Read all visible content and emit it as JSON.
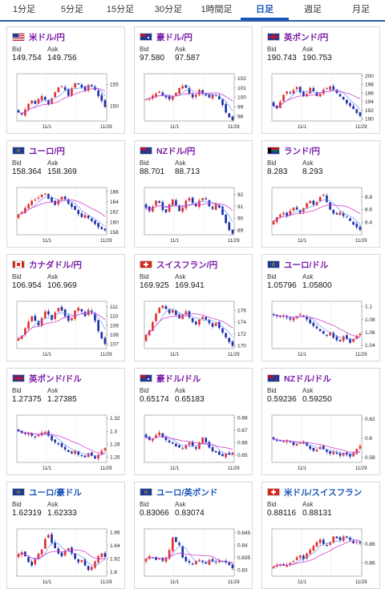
{
  "tabs": [
    {
      "label": "1分足",
      "active": false
    },
    {
      "label": "5分足",
      "active": false
    },
    {
      "label": "15分足",
      "active": false
    },
    {
      "label": "30分足",
      "active": false
    },
    {
      "label": "1時間足",
      "active": false
    },
    {
      "label": "日足",
      "active": true
    },
    {
      "label": "週足",
      "active": false
    },
    {
      "label": "月足",
      "active": false
    }
  ],
  "labels": {
    "bid": "Bid",
    "ask": "Ask"
  },
  "colors": {
    "up": "#e53030",
    "down": "#1c2fa8",
    "ma": "#d040d0",
    "ma2": "#7090ff",
    "purple_name": "#7a1aa8",
    "blue_name": "#1a56b8",
    "tab_active": "#1a56b8"
  },
  "pairs": [
    {
      "name": "米ドル/円",
      "flag": "us-flag-icon",
      "name_color": "purple",
      "bid": "149.754",
      "ask": "149.756",
      "chart_data": {
        "type": "candlestick",
        "x_labels": [
          "11/1",
          "11/29"
        ],
        "y_ticks": [
          150,
          155
        ],
        "ylim": [
          146.5,
          157.5
        ],
        "close": [
          148.5,
          148.0,
          149.2,
          150.5,
          151.3,
          150.5,
          151.6,
          152.3,
          151.5,
          150.4,
          151.8,
          153.2,
          154.3,
          154.6,
          153.7,
          152.4,
          154.2,
          155.3,
          155.0,
          154.3,
          153.6,
          154.9,
          154.6,
          153.7,
          152.3,
          151.2,
          149.8
        ]
      }
    },
    {
      "name": "豪ドル/円",
      "flag": "au-flag-icon",
      "name_color": "purple",
      "bid": "97.580",
      "ask": "97.587",
      "chart_data": {
        "type": "candlestick",
        "x_labels": [
          "11/1",
          "11/29"
        ],
        "y_ticks": [
          98,
          99,
          100,
          101,
          102
        ],
        "ylim": [
          97.5,
          102.5
        ],
        "close": [
          99.8,
          99.9,
          100.2,
          100.4,
          100.6,
          100.2,
          100.0,
          99.8,
          100.1,
          100.5,
          101.0,
          101.2,
          101.0,
          100.4,
          100.0,
          100.3,
          100.8,
          100.4,
          100.2,
          100.0,
          100.3,
          100.2,
          99.8,
          99.2,
          98.4,
          97.9,
          97.6
        ]
      }
    },
    {
      "name": "英ポンド/円",
      "flag": "uk-flag-icon",
      "name_color": "purple",
      "bid": "190.743",
      "ask": "190.753",
      "chart_data": {
        "type": "candlestick",
        "x_labels": [
          "11/1",
          "11/29"
        ],
        "y_ticks": [
          190,
          192,
          194,
          196,
          198,
          200
        ],
        "ylim": [
          189.5,
          200.5
        ],
        "close": [
          193.0,
          192.4,
          194.0,
          195.6,
          196.4,
          196.0,
          196.7,
          197.4,
          196.2,
          195.3,
          195.8,
          197.2,
          196.4,
          195.3,
          195.8,
          196.8,
          197.0,
          197.6,
          196.8,
          196.0,
          195.2,
          194.5,
          193.6,
          193.0,
          192.3,
          191.4,
          190.7
        ]
      }
    },
    {
      "name": "ユーロ/円",
      "flag": "eu-flag-icon",
      "name_color": "purple",
      "bid": "158.364",
      "ask": "158.369",
      "chart_data": {
        "type": "candlestick",
        "x_labels": [
          "11/1",
          "11/29"
        ],
        "y_ticks": [
          158,
          160,
          162,
          164,
          166
        ],
        "ylim": [
          157.5,
          166.8
        ],
        "close": [
          161.5,
          162.0,
          162.8,
          163.5,
          164.2,
          164.4,
          164.8,
          165.4,
          165.6,
          164.6,
          164.0,
          163.4,
          164.3,
          165.0,
          164.5,
          163.6,
          163.0,
          162.4,
          161.6,
          161.0,
          161.4,
          160.8,
          160.2,
          159.6,
          159.0,
          158.6,
          158.4
        ]
      }
    },
    {
      "name": "NZドル/円",
      "flag": "nz-flag-icon",
      "name_color": "purple",
      "bid": "88.701",
      "ask": "88.713",
      "chart_data": {
        "type": "candlestick",
        "x_labels": [
          "11/1",
          "11/29"
        ],
        "y_ticks": [
          89,
          90,
          91,
          92
        ],
        "ylim": [
          88.6,
          92.6
        ],
        "close": [
          90.9,
          90.6,
          91.0,
          91.5,
          91.3,
          90.7,
          90.5,
          91.2,
          91.6,
          91.1,
          90.6,
          90.9,
          91.5,
          91.7,
          91.3,
          91.0,
          91.5,
          91.7,
          91.6,
          91.0,
          90.8,
          91.2,
          90.9,
          90.3,
          89.6,
          89.0,
          88.7
        ]
      }
    },
    {
      "name": "ランド/円",
      "flag": "za-flag-icon",
      "name_color": "purple",
      "bid": "8.283",
      "ask": "8.293",
      "chart_data": {
        "type": "candlestick",
        "x_labels": [
          "11/1",
          "11/29"
        ],
        "y_ticks": [
          8.4,
          8.6,
          8.8
        ],
        "ylim": [
          8.2,
          8.95
        ],
        "close": [
          8.42,
          8.48,
          8.52,
          8.55,
          8.5,
          8.58,
          8.63,
          8.6,
          8.55,
          8.62,
          8.7,
          8.74,
          8.68,
          8.72,
          8.8,
          8.84,
          8.72,
          8.6,
          8.54,
          8.52,
          8.56,
          8.5,
          8.48,
          8.42,
          8.36,
          8.32,
          8.28
        ]
      }
    },
    {
      "name": "カナダドル/円",
      "flag": "ca-flag-icon",
      "name_color": "purple",
      "bid": "106.954",
      "ask": "106.969",
      "chart_data": {
        "type": "candlestick",
        "x_labels": [
          "11/1",
          "11/29"
        ],
        "y_ticks": [
          107,
          108,
          109,
          110,
          111
        ],
        "ylim": [
          106.5,
          111.6
        ],
        "close": [
          107.6,
          107.9,
          108.7,
          109.4,
          110.0,
          109.5,
          109.0,
          109.8,
          110.5,
          110.2,
          109.6,
          110.4,
          110.9,
          110.6,
          110.0,
          109.5,
          109.8,
          110.6,
          110.9,
          110.5,
          110.0,
          110.7,
          110.4,
          109.5,
          108.4,
          107.6,
          107.0
        ]
      }
    },
    {
      "name": "スイスフラン/円",
      "flag": "ch-flag-icon",
      "name_color": "purple",
      "bid": "169.925",
      "ask": "169.941",
      "chart_data": {
        "type": "candlestick",
        "x_labels": [
          "11/1",
          "11/29"
        ],
        "y_ticks": [
          170,
          172,
          174,
          176
        ],
        "ylim": [
          169.5,
          177.5
        ],
        "close": [
          171.8,
          172.6,
          174.0,
          175.4,
          176.4,
          176.8,
          176.2,
          175.5,
          176.0,
          175.2,
          174.6,
          175.3,
          175.8,
          174.8,
          174.0,
          173.6,
          174.4,
          174.9,
          174.4,
          173.8,
          173.2,
          173.8,
          173.0,
          172.2,
          171.4,
          170.6,
          170.0
        ]
      }
    },
    {
      "name": "ユーロ/ドル",
      "flag": "eu-flag-icon",
      "name_color": "purple",
      "bid": "1.05796",
      "ask": "1.05800",
      "chart_data": {
        "type": "candlestick",
        "x_labels": [
          "11/1",
          "11/29"
        ],
        "y_ticks": [
          1.04,
          1.06,
          1.08,
          1.1
        ],
        "ylim": [
          1.035,
          1.108
        ],
        "close": [
          1.087,
          1.085,
          1.084,
          1.086,
          1.083,
          1.08,
          1.082,
          1.085,
          1.088,
          1.086,
          1.08,
          1.074,
          1.07,
          1.066,
          1.062,
          1.058,
          1.055,
          1.06,
          1.052,
          1.048,
          1.046,
          1.054,
          1.05,
          1.044,
          1.05,
          1.055,
          1.058
        ]
      }
    },
    {
      "name": "英ポンド/ドル",
      "flag": "uk-flag-icon",
      "name_color": "purple",
      "bid": "1.27375",
      "ask": "1.27385",
      "chart_data": {
        "type": "candlestick",
        "x_labels": [
          "11/1",
          "11/29"
        ],
        "y_ticks": [
          1.26,
          1.28,
          1.3,
          1.32
        ],
        "ylim": [
          1.252,
          1.325
        ],
        "close": [
          1.3,
          1.297,
          1.296,
          1.298,
          1.293,
          1.291,
          1.294,
          1.298,
          1.299,
          1.293,
          1.286,
          1.283,
          1.28,
          1.276,
          1.272,
          1.268,
          1.266,
          1.27,
          1.264,
          1.262,
          1.26,
          1.266,
          1.262,
          1.258,
          1.264,
          1.27,
          1.274
        ]
      }
    },
    {
      "name": "豪ドル/ドル",
      "flag": "au-flag-icon",
      "name_color": "purple",
      "bid": "0.65174",
      "ask": "0.65183",
      "chart_data": {
        "type": "candlestick",
        "x_labels": [
          "11/1",
          "11/29"
        ],
        "y_ticks": [
          0.65,
          0.66,
          0.67,
          0.68
        ],
        "ylim": [
          0.644,
          0.682
        ],
        "close": [
          0.664,
          0.662,
          0.663,
          0.666,
          0.668,
          0.664,
          0.662,
          0.66,
          0.659,
          0.657,
          0.656,
          0.655,
          0.658,
          0.66,
          0.657,
          0.655,
          0.66,
          0.664,
          0.66,
          0.656,
          0.653,
          0.652,
          0.65,
          0.649,
          0.651,
          0.65,
          0.652
        ]
      }
    },
    {
      "name": "NZドル/ドル",
      "flag": "nz-flag-icon",
      "name_color": "purple",
      "bid": "0.59236",
      "ask": "0.59250",
      "chart_data": {
        "type": "candlestick",
        "x_labels": [
          "11/1",
          "11/29"
        ],
        "y_ticks": [
          0.58,
          0.6,
          0.62
        ],
        "ylim": [
          0.575,
          0.624
        ],
        "close": [
          0.599,
          0.598,
          0.597,
          0.596,
          0.598,
          0.596,
          0.593,
          0.594,
          0.595,
          0.596,
          0.592,
          0.589,
          0.587,
          0.588,
          0.591,
          0.589,
          0.586,
          0.584,
          0.586,
          0.584,
          0.582,
          0.585,
          0.583,
          0.581,
          0.585,
          0.589,
          0.592
        ]
      }
    },
    {
      "name": "ユーロ/豪ドル",
      "flag": "eu-flag-icon",
      "name_color": "blue",
      "bid": "1.62319",
      "ask": "1.62333",
      "chart_data": {
        "type": "candlestick",
        "x_labels": [
          "11/1",
          "11/29"
        ],
        "y_ticks": [
          1.6,
          1.62,
          1.64,
          1.66
        ],
        "ylim": [
          1.594,
          1.665
        ],
        "close": [
          1.627,
          1.63,
          1.624,
          1.615,
          1.61,
          1.62,
          1.628,
          1.634,
          1.65,
          1.656,
          1.644,
          1.636,
          1.628,
          1.624,
          1.632,
          1.636,
          1.628,
          1.62,
          1.615,
          1.618,
          1.61,
          1.603,
          1.608,
          1.616,
          1.624,
          1.628,
          1.623
        ]
      }
    },
    {
      "name": "ユーロ/英ポンド",
      "flag": "eu-flag-icon",
      "name_color": "blue",
      "bid": "0.83066",
      "ask": "0.83074",
      "chart_data": {
        "type": "candlestick",
        "x_labels": [
          "11/1",
          "11/29"
        ],
        "y_ticks": [
          0.83,
          0.835,
          0.84,
          0.845
        ],
        "ylim": [
          0.8275,
          0.8465
        ],
        "close": [
          0.8345,
          0.8355,
          0.835,
          0.834,
          0.8345,
          0.8337,
          0.835,
          0.838,
          0.843,
          0.8412,
          0.84,
          0.835,
          0.8335,
          0.833,
          0.8322,
          0.8337,
          0.834,
          0.8332,
          0.8325,
          0.834,
          0.8336,
          0.833,
          0.8338,
          0.8335,
          0.833,
          0.832,
          0.8307
        ]
      }
    },
    {
      "name": "米ドル/スイスフラン",
      "flag": "ch-flag-icon",
      "name_color": "blue",
      "bid": "0.88116",
      "ask": "0.88131",
      "chart_data": {
        "type": "candlestick",
        "x_labels": [
          "11/1",
          "11/29"
        ],
        "y_ticks": [
          0.86,
          0.88
        ],
        "ylim": [
          0.846,
          0.896
        ],
        "close": [
          0.856,
          0.858,
          0.859,
          0.857,
          0.858,
          0.86,
          0.862,
          0.866,
          0.868,
          0.864,
          0.87,
          0.874,
          0.878,
          0.882,
          0.885,
          0.88,
          0.878,
          0.882,
          0.888,
          0.886,
          0.884,
          0.888,
          0.887,
          0.884,
          0.881,
          0.882,
          0.881
        ]
      }
    }
  ]
}
